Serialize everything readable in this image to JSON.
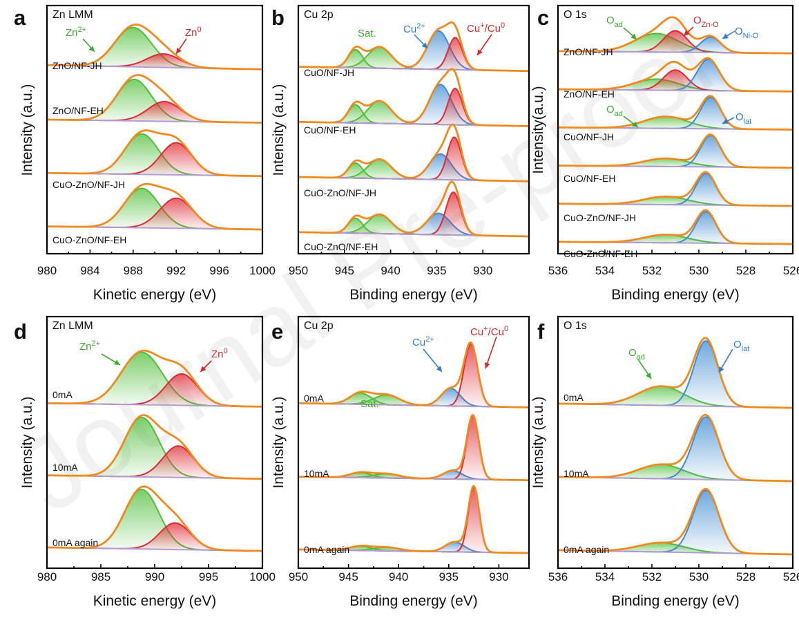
{
  "figure": {
    "watermark": "Journal Pre-proof",
    "colors": {
      "envelope": "#F08A1E",
      "background": "#B39CD6",
      "green": "#50BE3A",
      "red": "#DD2A32",
      "blue": "#3F8BD1",
      "green_label": "#3EAA2E",
      "red_label": "#D62728",
      "blue_label": "#2E7CC4"
    }
  },
  "chart_data": [
    {
      "id": "a",
      "type": "area",
      "letter": "a",
      "title": "Zn LMM",
      "xlabel": "Kinetic energy (eV)",
      "ylabel": "Intensity (a.u.)",
      "xlim": [
        980,
        1000
      ],
      "xticks": [
        "980",
        "984",
        "988",
        "992",
        "996",
        "1000"
      ],
      "peak_units": "eV",
      "series": [
        {
          "name": "ZnO/NF-JH",
          "bg_left": 0.08,
          "bg_right": 0.0,
          "peaks": [
            {
              "component": "Zn2+",
              "color": "green",
              "center": 988.0,
              "fwhm": 4.0,
              "height": 0.76
            },
            {
              "component": "Zn0",
              "color": "red",
              "center": 990.8,
              "fwhm": 3.6,
              "height": 0.26
            }
          ]
        },
        {
          "name": "ZnO/NF-EH",
          "bg_left": 0.06,
          "bg_right": 0.0,
          "peaks": [
            {
              "component": "Zn2+",
              "color": "green",
              "center": 988.1,
              "fwhm": 3.8,
              "height": 0.8
            },
            {
              "component": "Zn0",
              "color": "red",
              "center": 990.9,
              "fwhm": 3.6,
              "height": 0.38
            }
          ]
        },
        {
          "name": "CuO-ZnO/NF-JH",
          "bg_left": 0.06,
          "bg_right": 0.0,
          "peaks": [
            {
              "component": "Zn2+",
              "color": "green",
              "center": 988.8,
              "fwhm": 3.7,
              "height": 0.78
            },
            {
              "component": "Zn0",
              "color": "red",
              "center": 992.0,
              "fwhm": 3.4,
              "height": 0.62
            }
          ]
        },
        {
          "name": "CuO-ZnO/NF-EH",
          "bg_left": 0.06,
          "bg_right": 0.0,
          "peaks": [
            {
              "component": "Zn2+",
              "color": "green",
              "center": 988.8,
              "fwhm": 3.8,
              "height": 0.76
            },
            {
              "component": "Zn0",
              "color": "red",
              "center": 992.0,
              "fwhm": 3.6,
              "height": 0.58
            }
          ]
        }
      ],
      "annotations": [
        {
          "color": "green",
          "text": "Zn",
          "sup": "2+",
          "sub": ""
        },
        {
          "color": "red",
          "text": "Zn",
          "sup": "0",
          "sub": ""
        }
      ]
    },
    {
      "id": "b",
      "type": "area",
      "letter": "b",
      "title": "Cu 2p",
      "xlabel": "Binding energy (eV)",
      "ylabel": "Intensity (a.u.)",
      "xlim": [
        950,
        925
      ],
      "xticks": [
        "950",
        "945",
        "940",
        "935",
        "930"
      ],
      "peak_units": "eV",
      "series": [
        {
          "name": "CuO/NF-JH",
          "bg_left": 0.08,
          "bg_right": 0.0,
          "peaks": [
            {
              "component": "Sat.",
              "color": "green",
              "center": 943.8,
              "fwhm": 1.8,
              "height": 0.34
            },
            {
              "component": "Sat.",
              "color": "green",
              "center": 941.2,
              "fwhm": 3.0,
              "height": 0.4
            },
            {
              "component": "Cu2+",
              "color": "blue",
              "center": 934.8,
              "fwhm": 2.8,
              "height": 0.72
            },
            {
              "component": "Cu+/Cu0",
              "color": "red",
              "center": 933.0,
              "fwhm": 1.8,
              "height": 0.6
            }
          ]
        },
        {
          "name": "CuO/NF-EH",
          "bg_left": 0.08,
          "bg_right": 0.0,
          "peaks": [
            {
              "component": "Sat.",
              "color": "green",
              "center": 943.8,
              "fwhm": 1.8,
              "height": 0.34
            },
            {
              "component": "Sat.",
              "color": "green",
              "center": 941.2,
              "fwhm": 3.0,
              "height": 0.42
            },
            {
              "component": "Cu2+",
              "color": "blue",
              "center": 934.6,
              "fwhm": 2.8,
              "height": 0.75
            },
            {
              "component": "Cu+/Cu0",
              "color": "red",
              "center": 933.0,
              "fwhm": 1.8,
              "height": 0.68
            }
          ]
        },
        {
          "name": "CuO-ZnO/NF-JH",
          "bg_left": 0.08,
          "bg_right": 0.0,
          "peaks": [
            {
              "component": "Sat.",
              "color": "green",
              "center": 943.8,
              "fwhm": 1.8,
              "height": 0.28
            },
            {
              "component": "Sat.",
              "color": "green",
              "center": 941.2,
              "fwhm": 3.0,
              "height": 0.36
            },
            {
              "component": "Cu2+",
              "color": "blue",
              "center": 934.6,
              "fwhm": 2.8,
              "height": 0.48
            },
            {
              "component": "Cu+/Cu0",
              "color": "red",
              "center": 933.1,
              "fwhm": 1.8,
              "height": 0.8
            }
          ]
        },
        {
          "name": "CuO-ZnO/NF-EH",
          "bg_left": 0.08,
          "bg_right": 0.0,
          "peaks": [
            {
              "component": "Sat.",
              "color": "green",
              "center": 943.8,
              "fwhm": 1.8,
              "height": 0.28
            },
            {
              "component": "Sat.",
              "color": "green",
              "center": 941.2,
              "fwhm": 3.0,
              "height": 0.36
            },
            {
              "component": "Cu2+",
              "color": "blue",
              "center": 934.8,
              "fwhm": 3.0,
              "height": 0.4
            },
            {
              "component": "Cu+/Cu0",
              "color": "red",
              "center": 933.2,
              "fwhm": 1.9,
              "height": 0.8
            }
          ]
        }
      ],
      "annotations": [
        {
          "color": "green",
          "text": "Sat.",
          "sup": "",
          "sub": ""
        },
        {
          "color": "blue",
          "text": "Cu",
          "sup": "2+",
          "sub": ""
        },
        {
          "color": "red",
          "text": "Cu",
          "sup": "+",
          "sub": "",
          "tail": "/Cu",
          "tail_sup": "0"
        }
      ]
    },
    {
      "id": "c",
      "type": "area",
      "letter": "c",
      "title": "O 1s",
      "xlabel": "Binding energy (eV)",
      "ylabel": "Intensity(a.u.)",
      "xlim": [
        536,
        526
      ],
      "xticks": [
        "536",
        "534",
        "532",
        "530",
        "528",
        "526"
      ],
      "peak_units": "eV",
      "series": [
        {
          "name": "ZnO/NF-JH",
          "bg_left": 0.06,
          "bg_right": 0.0,
          "peaks": [
            {
              "component": "Oad",
              "color": "green",
              "center": 531.8,
              "fwhm": 2.2,
              "height": 0.5
            },
            {
              "component": "OZn-O",
              "color": "red",
              "center": 531.0,
              "fwhm": 1.2,
              "height": 0.58
            },
            {
              "component": "ONi-O",
              "color": "blue",
              "center": 529.5,
              "fwhm": 1.0,
              "height": 0.42
            }
          ]
        },
        {
          "name": "ZnO/NF-EH",
          "bg_left": 0.06,
          "bg_right": 0.0,
          "peaks": [
            {
              "component": "Oad",
              "color": "green",
              "center": 531.8,
              "fwhm": 2.2,
              "height": 0.3
            },
            {
              "component": "OZn-O",
              "color": "red",
              "center": 531.0,
              "fwhm": 1.2,
              "height": 0.55
            },
            {
              "component": "ONi-O",
              "color": "blue",
              "center": 529.6,
              "fwhm": 1.1,
              "height": 0.85
            }
          ]
        },
        {
          "name": "CuO/NF-JH",
          "bg_left": 0.06,
          "bg_right": 0.0,
          "peaks": [
            {
              "component": "Oad",
              "color": "green",
              "center": 531.4,
              "fwhm": 2.2,
              "height": 0.32
            },
            {
              "component": "Olat",
              "color": "blue",
              "center": 529.5,
              "fwhm": 1.0,
              "height": 0.85
            }
          ]
        },
        {
          "name": "CuO/NF-EH",
          "bg_left": 0.06,
          "bg_right": 0.0,
          "peaks": [
            {
              "component": "Oad",
              "color": "green",
              "center": 531.4,
              "fwhm": 2.2,
              "height": 0.22
            },
            {
              "component": "Olat",
              "color": "blue",
              "center": 529.5,
              "fwhm": 1.0,
              "height": 0.85
            }
          ]
        },
        {
          "name": "CuO-ZnO/NF-JH",
          "bg_left": 0.06,
          "bg_right": 0.0,
          "peaks": [
            {
              "component": "Oad",
              "color": "green",
              "center": 531.4,
              "fwhm": 2.2,
              "height": 0.22
            },
            {
              "component": "Olat",
              "color": "blue",
              "center": 529.7,
              "fwhm": 1.0,
              "height": 0.85
            }
          ]
        },
        {
          "name": "CuO-ZnO/NF-EH",
          "bg_left": 0.06,
          "bg_right": 0.0,
          "peaks": [
            {
              "component": "Oad",
              "color": "green",
              "center": 531.4,
              "fwhm": 2.2,
              "height": 0.22
            },
            {
              "component": "Olat",
              "color": "blue",
              "center": 529.7,
              "fwhm": 1.0,
              "height": 0.85
            }
          ]
        }
      ],
      "annotations": [
        {
          "color": "green",
          "text": "O",
          "sup": "",
          "sub": "ad"
        },
        {
          "color": "red",
          "text": "O",
          "sup": "",
          "sub": "Zn-O"
        },
        {
          "color": "blue",
          "text": "O",
          "sup": "",
          "sub": "Ni-O"
        },
        {
          "color": "green",
          "text": "O",
          "sup": "",
          "sub": "ad"
        },
        {
          "color": "blue",
          "text": "O",
          "sup": "",
          "sub": "lat"
        }
      ]
    },
    {
      "id": "d",
      "type": "area",
      "letter": "d",
      "title": "Zn LMM",
      "xlabel": "Kinetic energy (eV)",
      "ylabel": "Intensity (a.u.)",
      "xlim": [
        980,
        1000
      ],
      "xticks": [
        "980",
        "985",
        "990",
        "995",
        "1000"
      ],
      "peak_units": "eV",
      "series": [
        {
          "name": "0mA",
          "bg_left": 0.05,
          "bg_right": 0.0,
          "peaks": [
            {
              "component": "Zn2+",
              "color": "green",
              "center": 988.8,
              "fwhm": 4.5,
              "height": 0.75
            },
            {
              "component": "Zn0",
              "color": "red",
              "center": 992.5,
              "fwhm": 3.5,
              "height": 0.45
            }
          ]
        },
        {
          "name": "10mA",
          "bg_left": 0.05,
          "bg_right": 0.0,
          "peaks": [
            {
              "component": "Zn2+",
              "color": "green",
              "center": 988.8,
              "fwhm": 3.8,
              "height": 0.85
            },
            {
              "component": "Zn0",
              "color": "red",
              "center": 992.2,
              "fwhm": 3.4,
              "height": 0.45
            }
          ]
        },
        {
          "name": "0mA again",
          "bg_left": 0.05,
          "bg_right": 0.0,
          "peaks": [
            {
              "component": "Zn2+",
              "color": "green",
              "center": 988.8,
              "fwhm": 3.8,
              "height": 0.85
            },
            {
              "component": "Zn0",
              "color": "red",
              "center": 991.9,
              "fwhm": 3.4,
              "height": 0.38
            }
          ]
        }
      ],
      "annotations": [
        {
          "color": "green",
          "text": "Zn",
          "sup": "2+",
          "sub": ""
        },
        {
          "color": "red",
          "text": "Zn",
          "sup": "0",
          "sub": ""
        }
      ]
    },
    {
      "id": "e",
      "type": "area",
      "letter": "e",
      "title": "Cu 2p",
      "xlabel": "Binding energy (eV)",
      "ylabel": "Intensity (a.u.)",
      "xlim": [
        950,
        927
      ],
      "xticks": [
        "950",
        "945",
        "940",
        "935",
        "930"
      ],
      "peak_units": "eV",
      "series": [
        {
          "name": "0mA",
          "bg_left": 0.06,
          "bg_right": 0.0,
          "peaks": [
            {
              "component": "Sat.",
              "color": "green",
              "center": 943.8,
              "fwhm": 2.5,
              "height": 0.16
            },
            {
              "component": "Sat.",
              "color": "green",
              "center": 941.2,
              "fwhm": 3.0,
              "height": 0.14
            },
            {
              "component": "Cu2+",
              "color": "blue",
              "center": 934.8,
              "fwhm": 2.2,
              "height": 0.25
            },
            {
              "component": "Cu+/Cu0",
              "color": "red",
              "center": 932.8,
              "fwhm": 1.6,
              "height": 0.88
            }
          ]
        },
        {
          "name": "10mA",
          "bg_left": 0.05,
          "bg_right": 0.0,
          "peaks": [
            {
              "component": "Sat.",
              "color": "green",
              "center": 943.8,
              "fwhm": 2.5,
              "height": 0.07
            },
            {
              "component": "Sat.",
              "color": "green",
              "center": 941.2,
              "fwhm": 3.0,
              "height": 0.06
            },
            {
              "component": "Cu2+",
              "color": "blue",
              "center": 934.6,
              "fwhm": 2.2,
              "height": 0.12
            },
            {
              "component": "Cu+/Cu0",
              "color": "red",
              "center": 932.6,
              "fwhm": 1.4,
              "height": 0.9
            }
          ]
        },
        {
          "name": "0mA again",
          "bg_left": 0.05,
          "bg_right": 0.0,
          "peaks": [
            {
              "component": "Sat.",
              "color": "green",
              "center": 943.8,
              "fwhm": 2.5,
              "height": 0.06
            },
            {
              "component": "Sat.",
              "color": "green",
              "center": 941.2,
              "fwhm": 3.0,
              "height": 0.05
            },
            {
              "component": "Cu2+",
              "color": "blue",
              "center": 934.4,
              "fwhm": 2.2,
              "height": 0.14
            },
            {
              "component": "Cu+/Cu0",
              "color": "red",
              "center": 932.5,
              "fwhm": 1.3,
              "height": 0.92
            }
          ]
        }
      ],
      "annotations": [
        {
          "color": "green",
          "text": "Sat.",
          "sup": "",
          "sub": ""
        },
        {
          "color": "blue",
          "text": "Cu",
          "sup": "2+",
          "sub": ""
        },
        {
          "color": "red",
          "text": "Cu",
          "sup": "+",
          "sub": "",
          "tail": "/Cu",
          "tail_sup": "0"
        }
      ]
    },
    {
      "id": "f",
      "type": "area",
      "letter": "f",
      "title": "O 1s",
      "xlabel": "Binding energy (eV)",
      "ylabel": "Intensity (a.u.)",
      "xlim": [
        536,
        526
      ],
      "xticks": [
        "536",
        "534",
        "532",
        "530",
        "528",
        "526"
      ],
      "peak_units": "eV",
      "series": [
        {
          "name": "0mA",
          "bg_left": 0.06,
          "bg_right": 0.0,
          "peaks": [
            {
              "component": "Oad",
              "color": "green",
              "center": 531.6,
              "fwhm": 2.3,
              "height": 0.27
            },
            {
              "component": "Olat",
              "color": "blue",
              "center": 529.7,
              "fwhm": 1.2,
              "height": 0.92
            }
          ]
        },
        {
          "name": "10mA",
          "bg_left": 0.06,
          "bg_right": 0.0,
          "peaks": [
            {
              "component": "Oad",
              "color": "green",
              "center": 531.6,
              "fwhm": 2.3,
              "height": 0.2
            },
            {
              "component": "Olat",
              "color": "blue",
              "center": 529.7,
              "fwhm": 1.3,
              "height": 0.88
            }
          ]
        },
        {
          "name": "0mA again",
          "bg_left": 0.06,
          "bg_right": 0.0,
          "peaks": [
            {
              "component": "Oad",
              "color": "green",
              "center": 531.6,
              "fwhm": 2.3,
              "height": 0.13
            },
            {
              "component": "Olat",
              "color": "blue",
              "center": 529.7,
              "fwhm": 1.3,
              "height": 0.88
            }
          ]
        }
      ],
      "annotations": [
        {
          "color": "green",
          "text": "O",
          "sup": "",
          "sub": "ad"
        },
        {
          "color": "blue",
          "text": "O",
          "sup": "",
          "sub": "lat"
        }
      ]
    }
  ]
}
